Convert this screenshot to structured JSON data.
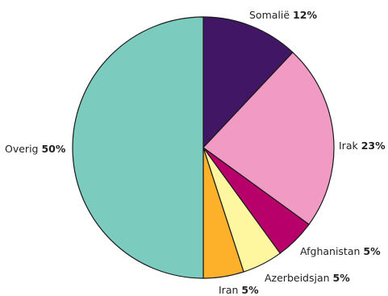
{
  "chart_data": {
    "type": "pie",
    "title": "",
    "slices": [
      {
        "label": "Somalië",
        "percent_label": "12%",
        "value": 12,
        "color": "#411765"
      },
      {
        "label": "Irak",
        "percent_label": "23%",
        "value": 23,
        "color": "#f09ac4"
      },
      {
        "label": "Afghanistan",
        "percent_label": "5%",
        "value": 5,
        "color": "#b8006b"
      },
      {
        "label": "Azerbeidsjan",
        "percent_label": "5%",
        "value": 5,
        "color": "#fff7a0"
      },
      {
        "label": "Iran",
        "percent_label": "5%",
        "value": 5,
        "color": "#fdb02a"
      },
      {
        "label": "Overig",
        "percent_label": "50%",
        "value": 50,
        "color": "#7ccbbf"
      }
    ]
  }
}
